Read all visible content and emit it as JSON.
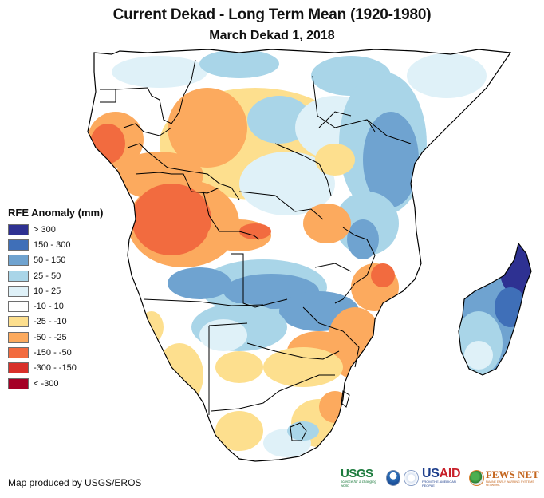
{
  "header": {
    "title": "Current Dekad - Long Term Mean (1920-1980)",
    "subtitle": "March Dekad 1, 2018"
  },
  "map": {
    "region": "Southern and East Africa with Madagascar",
    "variable": "RFE Anomaly",
    "units": "mm",
    "patterns": {
      "west_coast_gabon_congo_angola": "-150 - -50",
      "east_africa_kenya_tanzania": "50 - 150",
      "zambia_botswana_north": "50 - 150",
      "madagascar_northeast": "> 300",
      "madagascar_south": "10 - 25",
      "mozambique_south_africa_east": "-50 - -25",
      "namibia_south_africa_west": "-25 - -10"
    }
  },
  "legend": {
    "title": "RFE Anomaly (mm)",
    "items": [
      {
        "label": "> 300",
        "color": "#2e3192"
      },
      {
        "label": "150 - 300",
        "color": "#3f6fb8"
      },
      {
        "label": "50 - 150",
        "color": "#6fa3d0"
      },
      {
        "label": "25 - 50",
        "color": "#a9d5e8"
      },
      {
        "label": "10 - 25",
        "color": "#dff1f8"
      },
      {
        "label": "-10 - 10",
        "color": "#ffffff"
      },
      {
        "label": "-25 - -10",
        "color": "#fddf8e"
      },
      {
        "label": "-50 - -25",
        "color": "#fcaa5e"
      },
      {
        "label": "-150 - -50",
        "color": "#f26b3f"
      },
      {
        "label": "-300 - -150",
        "color": "#d8302a"
      },
      {
        "label": "< -300",
        "color": "#a50026"
      }
    ]
  },
  "footer": {
    "credit": "Map produced by USGS/EROS",
    "logos": {
      "usgs": "USGS",
      "usgs_tagline": "science for a changing world",
      "usaid_a": "US",
      "usaid_b": "AID",
      "usaid_tagline": "FROM THE AMERICAN PEOPLE",
      "fews": "FEWS NET",
      "fews_tagline": "FAMINE EARLY WARNING SYSTEMS NETWORK"
    }
  }
}
